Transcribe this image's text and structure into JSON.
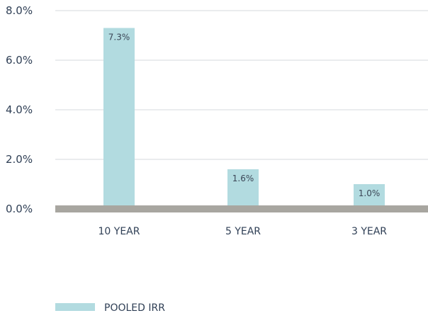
{
  "chart_data": {
    "type": "bar",
    "categories": [
      "10 YEAR",
      "5 YEAR",
      "3 YEAR"
    ],
    "series": [
      {
        "name": "POOLED IRR",
        "values": [
          7.3,
          1.6,
          1.0
        ],
        "color": "#b2dbe0"
      }
    ],
    "data_labels": [
      "7.3%",
      "1.6%",
      "1.0%"
    ],
    "yticks": [
      0,
      2,
      4,
      6,
      8
    ],
    "ytick_labels": [
      "0.0%",
      "2.0%",
      "4.0%",
      "6.0%",
      "8.0%"
    ],
    "ylim": [
      0,
      8
    ],
    "grid": true,
    "legend_position": "bottom-left",
    "baseline_color": "#a8a6a0"
  }
}
